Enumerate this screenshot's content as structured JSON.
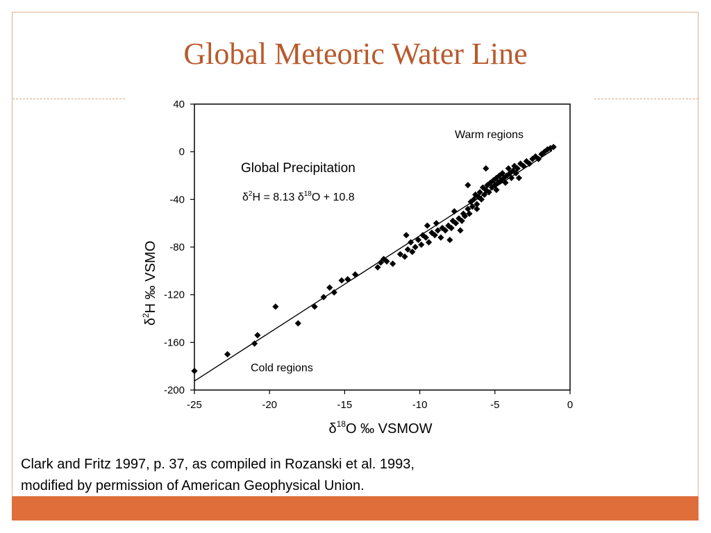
{
  "slide": {
    "title": "Global Meteoric Water Line",
    "caption_line1": "Clark and Fritz 1997, p. 37, as compiled in Rozanski et al. 1993,",
    "caption_line2": "modified by permission of American Geophysical Union.",
    "title_color": "#b85a2c",
    "accent_color": "#df6e3b"
  },
  "chart_data": {
    "type": "scatter",
    "xlabel_delta": "δ",
    "xlabel_sup": "18",
    "xlabel_rest": "O ‰ VSMOW",
    "ylabel_delta": "δ",
    "ylabel_sup": "2",
    "ylabel_rest": "H ‰ VSMO",
    "xlim": [
      -25,
      0
    ],
    "ylim": [
      -200,
      40
    ],
    "xticks": [
      -25,
      -20,
      -15,
      -10,
      -5,
      0
    ],
    "yticks": [
      40,
      0,
      -40,
      -80,
      -120,
      -160,
      -200
    ],
    "grid": false,
    "annotation_title": "Global Precipitation",
    "equation": {
      "lhs_delta": "δ",
      "lhs_sup": "2",
      "lhs_rest": "H = 8.13 ",
      "rhs_delta": "δ",
      "rhs_sup": "18",
      "rhs_rest": "O + 10.8"
    },
    "label_warm": "Warm regions",
    "label_cold": "Cold regions",
    "regression": {
      "slope": 8.13,
      "intercept": 10.8,
      "x_range": [
        -25,
        -1.2
      ]
    },
    "points": [
      [
        -25.0,
        -184
      ],
      [
        -22.8,
        -170
      ],
      [
        -21.0,
        -161
      ],
      [
        -20.8,
        -154
      ],
      [
        -19.6,
        -130
      ],
      [
        -18.1,
        -144
      ],
      [
        -17.0,
        -130
      ],
      [
        -16.4,
        -122
      ],
      [
        -16.0,
        -114
      ],
      [
        -15.7,
        -118
      ],
      [
        -15.2,
        -108
      ],
      [
        -14.8,
        -107
      ],
      [
        -14.3,
        -103
      ],
      [
        -12.8,
        -97
      ],
      [
        -12.6,
        -93
      ],
      [
        -12.4,
        -90
      ],
      [
        -12.2,
        -92
      ],
      [
        -11.8,
        -94
      ],
      [
        -11.3,
        -86
      ],
      [
        -11.0,
        -88
      ],
      [
        -10.8,
        -82
      ],
      [
        -10.6,
        -76
      ],
      [
        -10.5,
        -84
      ],
      [
        -10.3,
        -80
      ],
      [
        -10.1,
        -74
      ],
      [
        -9.9,
        -78
      ],
      [
        -9.8,
        -70
      ],
      [
        -9.6,
        -72
      ],
      [
        -9.4,
        -76
      ],
      [
        -9.2,
        -68
      ],
      [
        -9.0,
        -70
      ],
      [
        -8.8,
        -66
      ],
      [
        -8.6,
        -72
      ],
      [
        -8.5,
        -64
      ],
      [
        -8.3,
        -66
      ],
      [
        -8.1,
        -62
      ],
      [
        -7.9,
        -64
      ],
      [
        -7.8,
        -58
      ],
      [
        -7.6,
        -60
      ],
      [
        -7.4,
        -56
      ],
      [
        -7.2,
        -58
      ],
      [
        -7.1,
        -52
      ],
      [
        -7.0,
        -54
      ],
      [
        -6.8,
        -48
      ],
      [
        -6.7,
        -52
      ],
      [
        -6.6,
        -42
      ],
      [
        -6.5,
        -46
      ],
      [
        -6.4,
        -40
      ],
      [
        -6.3,
        -36
      ],
      [
        -6.2,
        -44
      ],
      [
        -6.1,
        -38
      ],
      [
        -6.0,
        -34
      ],
      [
        -5.9,
        -40
      ],
      [
        -5.8,
        -30
      ],
      [
        -5.7,
        -36
      ],
      [
        -5.6,
        -32
      ],
      [
        -5.5,
        -28
      ],
      [
        -5.4,
        -34
      ],
      [
        -5.3,
        -26
      ],
      [
        -5.2,
        -30
      ],
      [
        -5.1,
        -24
      ],
      [
        -5.0,
        -28
      ],
      [
        -4.9,
        -22
      ],
      [
        -4.8,
        -26
      ],
      [
        -4.7,
        -20
      ],
      [
        -4.6,
        -24
      ],
      [
        -4.5,
        -18
      ],
      [
        -4.4,
        -22
      ],
      [
        -4.3,
        -26
      ],
      [
        -4.2,
        -20
      ],
      [
        -4.1,
        -14
      ],
      [
        -4.0,
        -18
      ],
      [
        -3.9,
        -22
      ],
      [
        -3.8,
        -16
      ],
      [
        -3.7,
        -12
      ],
      [
        -3.6,
        -18
      ],
      [
        -3.5,
        -14
      ],
      [
        -3.3,
        -10
      ],
      [
        -3.1,
        -12
      ],
      [
        -2.9,
        -8
      ],
      [
        -2.7,
        -10
      ],
      [
        -2.5,
        -6
      ],
      [
        -2.3,
        -4
      ],
      [
        -2.1,
        -6
      ],
      [
        -1.9,
        -2
      ],
      [
        -1.7,
        0
      ],
      [
        -1.5,
        2
      ],
      [
        -1.3,
        3
      ],
      [
        -1.1,
        4
      ],
      [
        -6.8,
        -28
      ],
      [
        -5.6,
        -14
      ],
      [
        -7.3,
        -66
      ],
      [
        -8.0,
        -74
      ],
      [
        -9.5,
        -62
      ],
      [
        -10.9,
        -70
      ],
      [
        -6.2,
        -48
      ],
      [
        -4.9,
        -32
      ],
      [
        -3.4,
        -22
      ],
      [
        -7.7,
        -50
      ],
      [
        -8.9,
        -60
      ]
    ]
  }
}
